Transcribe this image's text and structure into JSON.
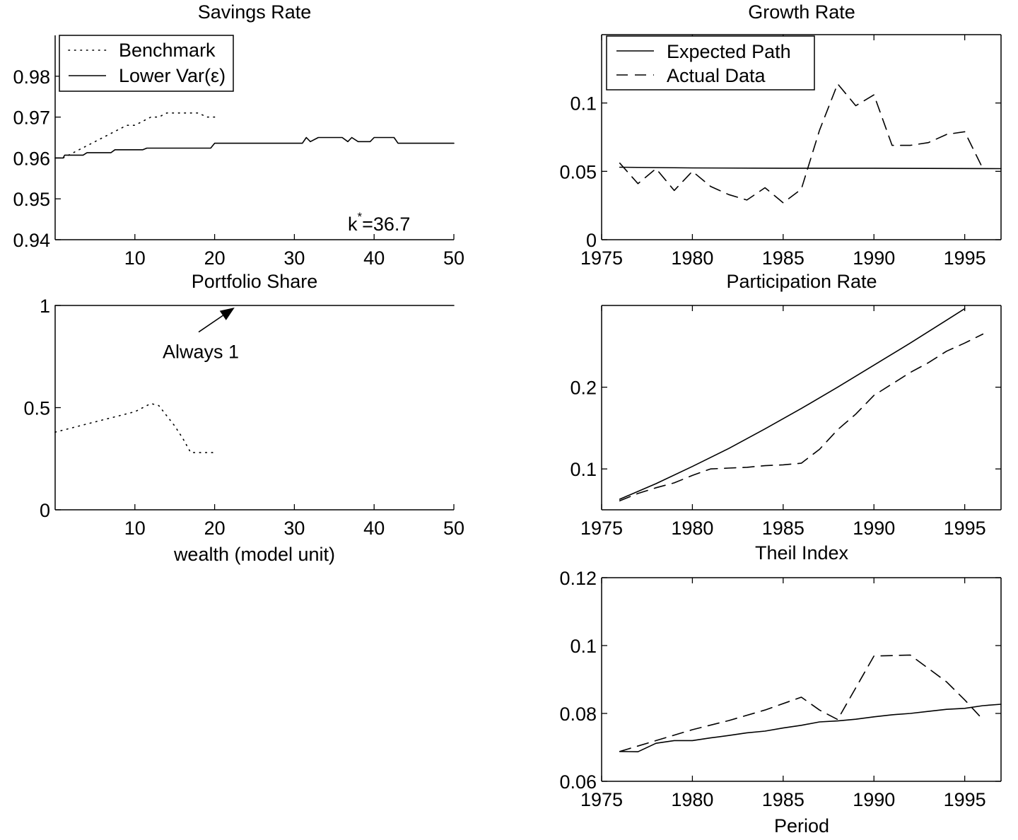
{
  "chart_data": [
    {
      "id": "savings",
      "type": "line",
      "title": "Savings Rate",
      "xlabel": "",
      "ylabel": "",
      "xlim": [
        0,
        50
      ],
      "ylim": [
        0.94,
        0.99
      ],
      "xticks": [
        10,
        20,
        30,
        40,
        50
      ],
      "yticks": [
        0.94,
        0.95,
        0.96,
        0.97,
        0.98
      ],
      "ytick_labels": [
        "0.94",
        "0.95",
        "0.96",
        "0.97",
        "0.98"
      ],
      "frame": "left-bottom",
      "grid": false,
      "legend_position": "top-left",
      "annotation": "k*=36.7",
      "annotation_sup": "*",
      "annotation_base": "k",
      "annotation_rest": "=36.7",
      "series": [
        {
          "name": "Benchmark",
          "style": "dotted",
          "x": [
            1,
            2,
            3,
            4,
            5,
            6,
            7,
            8,
            9,
            10,
            11,
            12,
            13,
            14,
            15,
            16,
            17,
            18,
            19,
            20
          ],
          "y": [
            0.96,
            0.961,
            0.962,
            0.963,
            0.964,
            0.965,
            0.966,
            0.967,
            0.968,
            0.968,
            0.969,
            0.97,
            0.97,
            0.971,
            0.971,
            0.971,
            0.971,
            0.971,
            0.97,
            0.97
          ]
        },
        {
          "name": "Lower Var(ε)",
          "style": "solid",
          "x": [
            0,
            1,
            1.2,
            3.5,
            4,
            7,
            7.5,
            11,
            11.5,
            19.5,
            20,
            31,
            31.5,
            32,
            33,
            36,
            36.7,
            37.2,
            38,
            39.5,
            40,
            42.5,
            43,
            50
          ],
          "y": [
            0.96,
            0.96,
            0.9607,
            0.9607,
            0.9613,
            0.9613,
            0.962,
            0.962,
            0.9624,
            0.9624,
            0.9636,
            0.9636,
            0.965,
            0.964,
            0.965,
            0.965,
            0.964,
            0.965,
            0.964,
            0.964,
            0.965,
            0.965,
            0.9636,
            0.9636
          ]
        }
      ]
    },
    {
      "id": "portfolio",
      "type": "line",
      "title": "Portfolio Share",
      "xlabel": "wealth (model unit)",
      "ylabel": "",
      "xlim": [
        0,
        50
      ],
      "ylim": [
        0,
        1
      ],
      "xticks": [
        10,
        20,
        30,
        40,
        50
      ],
      "yticks": [
        0,
        0.5,
        1
      ],
      "ytick_labels": [
        "0",
        "0.5",
        "1"
      ],
      "frame": "left-bottom",
      "grid": false,
      "annotation": "Always 1",
      "annotation_target": [
        22.5,
        1
      ],
      "annotation_anchor": [
        18,
        0.87
      ],
      "series": [
        {
          "name": "Benchmark",
          "style": "dotted",
          "x": [
            0,
            2,
            4,
            6,
            8,
            10,
            11,
            12,
            13,
            14,
            15,
            16,
            17,
            18,
            19,
            20
          ],
          "y": [
            0.38,
            0.4,
            0.42,
            0.44,
            0.46,
            0.48,
            0.5,
            0.52,
            0.51,
            0.46,
            0.41,
            0.35,
            0.28,
            0.28,
            0.28,
            0.28
          ]
        },
        {
          "name": "Lower Var(ε)",
          "style": "solid",
          "x": [
            0,
            50
          ],
          "y": [
            1,
            1
          ]
        }
      ]
    },
    {
      "id": "growth",
      "type": "line",
      "title": "Growth Rate",
      "xlabel": "",
      "ylabel": "",
      "xlim": [
        1975,
        1997
      ],
      "ylim": [
        0,
        0.15
      ],
      "xticks": [
        1975,
        1980,
        1985,
        1990,
        1995
      ],
      "yticks": [
        0,
        0.05,
        0.1
      ],
      "ytick_labels": [
        "0",
        "0.05",
        "0.1"
      ],
      "frame": "box",
      "grid": false,
      "legend_position": "top-left",
      "series": [
        {
          "name": "Expected Path",
          "style": "solid",
          "x": [
            1976,
            1980,
            1985,
            1990,
            1997
          ],
          "y": [
            0.053,
            0.0525,
            0.0523,
            0.0523,
            0.052
          ]
        },
        {
          "name": "Actual Data",
          "style": "dashed",
          "x": [
            1976,
            1977,
            1978,
            1979,
            1980,
            1981,
            1982,
            1983,
            1984,
            1985,
            1986,
            1987,
            1988,
            1989,
            1990,
            1991,
            1992,
            1993,
            1994,
            1995,
            1996
          ],
          "y": [
            0.056,
            0.041,
            0.052,
            0.036,
            0.05,
            0.039,
            0.033,
            0.029,
            0.038,
            0.027,
            0.037,
            0.08,
            0.114,
            0.098,
            0.106,
            0.069,
            0.069,
            0.071,
            0.077,
            0.079,
            0.052
          ]
        }
      ]
    },
    {
      "id": "participation",
      "type": "line",
      "title": "Participation Rate",
      "xlabel": "",
      "ylabel": "",
      "xlim": [
        1975,
        1997
      ],
      "ylim": [
        0.05,
        0.3
      ],
      "xticks": [
        1975,
        1980,
        1985,
        1990,
        1995
      ],
      "yticks": [
        0.1,
        0.2
      ],
      "ytick_labels": [
        "0.1",
        "0.2"
      ],
      "frame": "box",
      "grid": false,
      "series": [
        {
          "name": "Expected Path",
          "style": "solid",
          "x": [
            1976,
            1978,
            1980,
            1982,
            1984,
            1986,
            1988,
            1990,
            1992,
            1994,
            1995
          ],
          "y": [
            0.063,
            0.082,
            0.103,
            0.125,
            0.149,
            0.174,
            0.2,
            0.227,
            0.254,
            0.282,
            0.296
          ]
        },
        {
          "name": "Actual Data",
          "style": "dashed",
          "x": [
            1976,
            1977,
            1978,
            1979,
            1980,
            1981,
            1982,
            1983,
            1984,
            1985,
            1986,
            1987,
            1988,
            1989,
            1990,
            1991,
            1992,
            1993,
            1994,
            1995,
            1996
          ],
          "y": [
            0.061,
            0.07,
            0.077,
            0.083,
            0.092,
            0.1,
            0.101,
            0.102,
            0.104,
            0.105,
            0.107,
            0.124,
            0.148,
            0.167,
            0.19,
            0.204,
            0.218,
            0.23,
            0.244,
            0.254,
            0.265
          ]
        }
      ]
    },
    {
      "id": "theil",
      "type": "line",
      "title": "Theil Index",
      "xlabel": "Period",
      "ylabel": "",
      "xlim": [
        1975,
        1997
      ],
      "ylim": [
        0.06,
        0.12
      ],
      "xticks": [
        1975,
        1980,
        1985,
        1990,
        1995
      ],
      "yticks": [
        0.06,
        0.08,
        0.1,
        0.12
      ],
      "ytick_labels": [
        "0.06",
        "0.08",
        "0.1",
        "0.12"
      ],
      "frame": "box",
      "grid": false,
      "series": [
        {
          "name": "Expected Path",
          "style": "solid",
          "x": [
            1976,
            1977,
            1978,
            1979,
            1980,
            1981,
            1982,
            1983,
            1984,
            1985,
            1986,
            1987,
            1988,
            1989,
            1990,
            1991,
            1992,
            1993,
            1994,
            1995,
            1996,
            1997
          ],
          "y": [
            0.0688,
            0.0687,
            0.0712,
            0.072,
            0.072,
            0.0728,
            0.0735,
            0.0743,
            0.0748,
            0.0757,
            0.0765,
            0.0775,
            0.0778,
            0.0783,
            0.079,
            0.0796,
            0.08,
            0.0806,
            0.0812,
            0.0815,
            0.0823,
            0.0827
          ]
        },
        {
          "name": "Actual Data",
          "style": "dashed",
          "x": [
            1976,
            1978,
            1980,
            1982,
            1984,
            1986,
            1987,
            1988,
            1990,
            1992,
            1994,
            1995,
            1996
          ],
          "y": [
            0.0688,
            0.072,
            0.0752,
            0.0779,
            0.081,
            0.0848,
            0.081,
            0.0782,
            0.0969,
            0.0972,
            0.0893,
            0.084,
            0.0782
          ]
        }
      ]
    }
  ]
}
